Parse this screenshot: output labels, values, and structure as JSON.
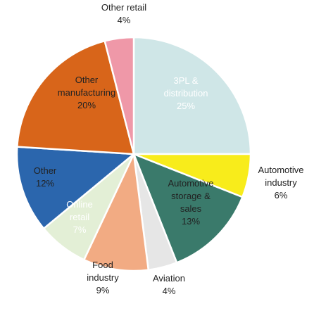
{
  "chart_data": {
    "type": "pie",
    "start_angle_deg": 0,
    "direction": "clockwise",
    "slices": [
      {
        "label": [
          "3PL &",
          "distribution"
        ],
        "value": 25,
        "value_label": "25%",
        "color": "#cfe6e7",
        "label_pos": "inside",
        "label_color": "dark"
      },
      {
        "label": [
          "Automotive",
          "industry"
        ],
        "value": 6,
        "value_label": "6%",
        "color": "#f8ec1b",
        "label_pos": "outside",
        "label_color": "dark"
      },
      {
        "label": [
          "Automotive",
          "storage &",
          "sales"
        ],
        "value": 13,
        "value_label": "13%",
        "color": "#3a7a6b",
        "label_pos": "inside",
        "label_color": "light"
      },
      {
        "label": [
          "Aviation"
        ],
        "value": 4,
        "value_label": "4%",
        "color": "#e6e6e6",
        "label_pos": "outside",
        "label_color": "dark"
      },
      {
        "label": [
          "Food",
          "industry"
        ],
        "value": 9,
        "value_label": "9%",
        "color": "#f2ab83",
        "label_pos": "outside",
        "label_color": "dark"
      },
      {
        "label": [
          "Online",
          "retail"
        ],
        "value": 7,
        "value_label": "7%",
        "color": "#e3efd6",
        "label_pos": "inside",
        "label_color": "dark"
      },
      {
        "label": [
          "Other"
        ],
        "value": 12,
        "value_label": "12%",
        "color": "#2b66ad",
        "label_pos": "inside",
        "label_color": "light"
      },
      {
        "label": [
          "Other",
          "manufacturing"
        ],
        "value": 20,
        "value_label": "20%",
        "color": "#d8651a",
        "label_pos": "inside",
        "label_color": "light"
      },
      {
        "label": [
          "Other retail"
        ],
        "value": 4,
        "value_label": "4%",
        "color": "#ef98a8",
        "label_pos": "outside",
        "label_color": "dark"
      }
    ]
  }
}
